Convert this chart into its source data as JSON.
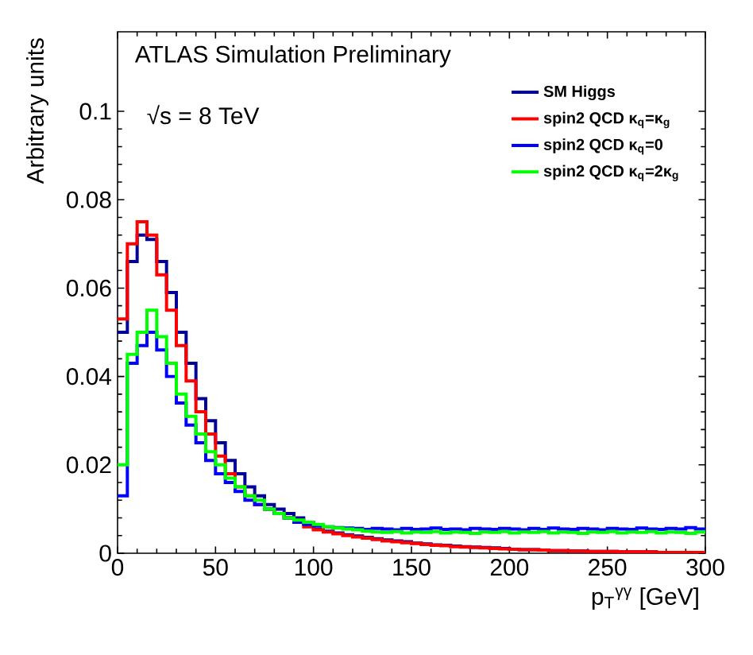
{
  "chart_data": {
    "type": "histogram",
    "title": "ATLAS Simulation Preliminary",
    "annotations": [
      "√s = 8 TeV"
    ],
    "xlabel": "p$_{T}$$^{γγ}$ [GeV]",
    "ylabel": "Arbitrary units",
    "bins": [
      0,
      5,
      10,
      15,
      20,
      25,
      30,
      35,
      40,
      45,
      50,
      55,
      60,
      65,
      70,
      75,
      80,
      85,
      90,
      95,
      100,
      105,
      110,
      115,
      120,
      125,
      130,
      135,
      140,
      145,
      150,
      155,
      160,
      165,
      170,
      175,
      180,
      185,
      190,
      195,
      200,
      205,
      210,
      215,
      220,
      225,
      230,
      235,
      240,
      245,
      250,
      255,
      260,
      265,
      270,
      275,
      280,
      285,
      290,
      295,
      300
    ],
    "series": [
      {
        "name": "SM Higgs",
        "color": "#000099",
        "values": [
          0.05,
          0.066,
          0.072,
          0.071,
          0.066,
          0.059,
          0.05,
          0.043,
          0.035,
          0.03,
          0.025,
          0.021,
          0.018,
          0.015,
          0.013,
          0.011,
          0.01,
          0.009,
          0.008,
          0.007,
          0.0055,
          0.005,
          0.0046,
          0.0042,
          0.0039,
          0.0036,
          0.0033,
          0.003,
          0.0028,
          0.0026,
          0.0023,
          0.0021,
          0.0019,
          0.0018,
          0.0016,
          0.0015,
          0.0014,
          0.0013,
          0.0012,
          0.0011,
          0.0009,
          0.0008,
          0.0008,
          0.0007,
          0.0006,
          0.0006,
          0.0005,
          0.0005,
          0.0004,
          0.0004,
          0.0004,
          0.0003,
          0.0003,
          0.0003,
          0.0003,
          0.0002,
          0.0002,
          0.0002,
          0.0002,
          0.0002
        ]
      },
      {
        "name": "spin2 QCD  κ$_{q}$=κ$_{g}$",
        "color": "#ff0000",
        "values": [
          0.053,
          0.07,
          0.075,
          0.072,
          0.063,
          0.055,
          0.047,
          0.039,
          0.032,
          0.027,
          0.022,
          0.018,
          0.015,
          0.013,
          0.011,
          0.01,
          0.009,
          0.008,
          0.007,
          0.006,
          0.0053,
          0.0048,
          0.0044,
          0.004,
          0.0037,
          0.0034,
          0.0031,
          0.0028,
          0.0026,
          0.0024,
          0.0022,
          0.002,
          0.0018,
          0.0017,
          0.0015,
          0.0014,
          0.0013,
          0.0012,
          0.0011,
          0.001,
          0.0009,
          0.0008,
          0.0008,
          0.0007,
          0.0006,
          0.0006,
          0.0005,
          0.0005,
          0.0004,
          0.0004,
          0.0004,
          0.0003,
          0.0003,
          0.0003,
          0.0003,
          0.0002,
          0.0002,
          0.0002,
          0.0002,
          0.0002
        ]
      },
      {
        "name": "spin2 QCD  κ$_{q}$=0",
        "color": "#0000ff",
        "values": [
          0.013,
          0.043,
          0.047,
          0.05,
          0.046,
          0.04,
          0.034,
          0.029,
          0.025,
          0.021,
          0.018,
          0.016,
          0.014,
          0.012,
          0.011,
          0.01,
          0.009,
          0.008,
          0.007,
          0.0065,
          0.0062,
          0.006,
          0.0058,
          0.0057,
          0.0056,
          0.0054,
          0.0056,
          0.0055,
          0.0053,
          0.0056,
          0.0054,
          0.0055,
          0.0057,
          0.0054,
          0.0055,
          0.0053,
          0.0056,
          0.0055,
          0.0054,
          0.0056,
          0.0055,
          0.0053,
          0.0056,
          0.0054,
          0.0057,
          0.0055,
          0.0054,
          0.0056,
          0.0055,
          0.0053,
          0.0056,
          0.0055,
          0.0054,
          0.0057,
          0.0055,
          0.0054,
          0.0056,
          0.0055,
          0.0058,
          0.0055
        ]
      },
      {
        "name": "spin2 QCD  κ$_{q}$=2κ$_{g}$",
        "color": "#00ff00",
        "values": [
          0.02,
          0.045,
          0.05,
          0.055,
          0.049,
          0.043,
          0.036,
          0.031,
          0.027,
          0.023,
          0.02,
          0.017,
          0.015,
          0.013,
          0.012,
          0.01,
          0.009,
          0.008,
          0.0075,
          0.007,
          0.0065,
          0.006,
          0.0057,
          0.0055,
          0.0053,
          0.005,
          0.0048,
          0.0047,
          0.0049,
          0.0046,
          0.0048,
          0.0047,
          0.0049,
          0.0046,
          0.0048,
          0.0047,
          0.0045,
          0.0048,
          0.0047,
          0.0049,
          0.0046,
          0.0048,
          0.0047,
          0.0049,
          0.0046,
          0.0048,
          0.0047,
          0.0045,
          0.0048,
          0.0047,
          0.0049,
          0.0046,
          0.0048,
          0.0047,
          0.0049,
          0.0046,
          0.0048,
          0.0047,
          0.0045,
          0.0048
        ]
      }
    ],
    "xlim": [
      0,
      300
    ],
    "ylim": [
      0,
      0.118
    ],
    "xticks": [
      0,
      50,
      100,
      150,
      200,
      250,
      300
    ],
    "yticks": [
      0,
      0.02,
      0.04,
      0.06,
      0.08,
      0.1
    ],
    "legend": "top right",
    "grid": false
  }
}
